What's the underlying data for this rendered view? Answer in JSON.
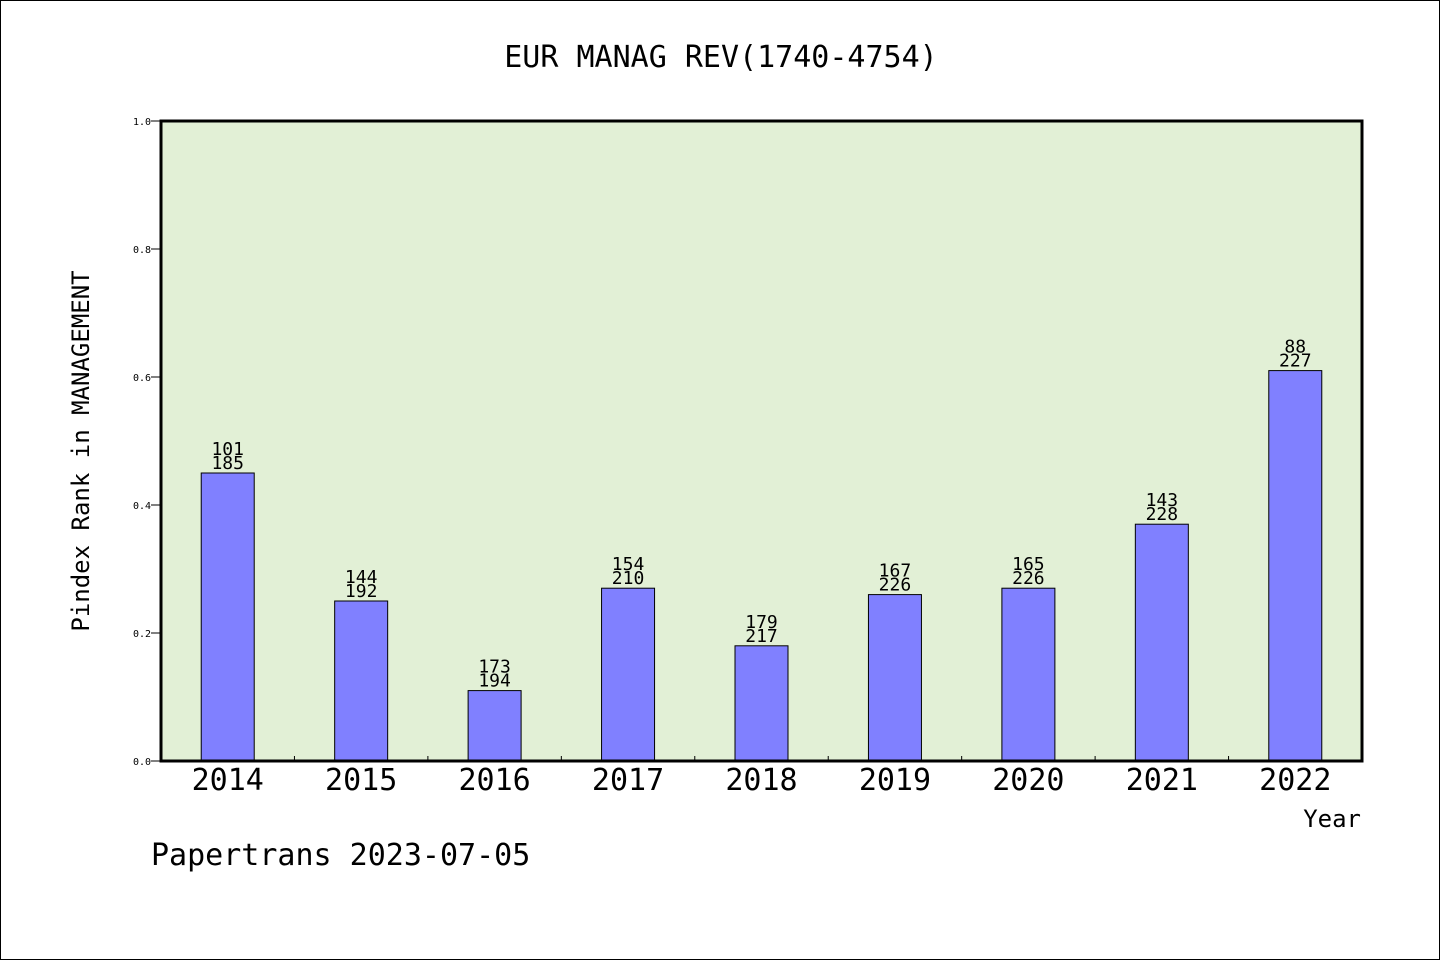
{
  "chart_data": {
    "type": "bar",
    "title": "EUR MANAG REV(1740-4754)",
    "xlabel": "Year",
    "ylabel": "Pindex Rank in MANAGEMENT",
    "footer": "Papertrans 2023-07-05",
    "ylim": [
      0,
      1.0
    ],
    "yticks": [
      "0.0",
      "0.2",
      "0.4",
      "0.6",
      "0.8",
      "1.0"
    ],
    "categories": [
      "2014",
      "2015",
      "2016",
      "2017",
      "2018",
      "2019",
      "2020",
      "2021",
      "2022"
    ],
    "values": [
      0.45,
      0.25,
      0.11,
      0.27,
      0.18,
      0.26,
      0.27,
      0.37,
      0.61
    ],
    "rank_labels": [
      "101",
      "144",
      "173",
      "154",
      "179",
      "167",
      "165",
      "143",
      "88"
    ],
    "total_labels": [
      "185",
      "192",
      "194",
      "210",
      "217",
      "226",
      "226",
      "228",
      "227"
    ],
    "bar_color": "#8080ff",
    "plot_background": "#e2f0d6",
    "grid": false
  }
}
